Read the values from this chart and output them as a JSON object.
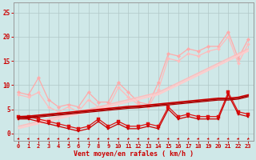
{
  "bg_color": "#cfe8e8",
  "grid_color": "#b0c8c8",
  "xlabel": "Vent moyen/en rafales ( km/h )",
  "xlabel_color": "#cc0000",
  "tick_color": "#cc0000",
  "x_ticks": [
    0,
    1,
    2,
    3,
    4,
    5,
    6,
    7,
    8,
    9,
    10,
    11,
    12,
    13,
    14,
    15,
    16,
    17,
    18,
    19,
    20,
    21,
    22,
    23
  ],
  "y_ticks": [
    0,
    5,
    10,
    15,
    20,
    25
  ],
  "ylim": [
    -1.5,
    27
  ],
  "xlim": [
    -0.5,
    23.5
  ],
  "lines": [
    {
      "color": "#ffaaaa",
      "lw": 0.9,
      "marker": "D",
      "ms": 2.2,
      "y": [
        8.5,
        8.0,
        11.5,
        7.0,
        5.5,
        6.0,
        5.5,
        8.5,
        6.5,
        6.5,
        10.5,
        8.5,
        6.5,
        6.0,
        10.5,
        16.5,
        16.0,
        17.5,
        17.0,
        18.0,
        18.0,
        21.0,
        15.5,
        19.5
      ]
    },
    {
      "color": "#ffbbbb",
      "lw": 0.9,
      "marker": "D",
      "ms": 2.0,
      "y": [
        8.0,
        7.5,
        8.5,
        5.5,
        4.5,
        5.5,
        4.5,
        7.0,
        5.5,
        5.5,
        9.5,
        7.5,
        6.0,
        5.5,
        9.0,
        15.5,
        15.0,
        16.5,
        16.0,
        17.0,
        17.5,
        20.0,
        14.5,
        18.5
      ]
    },
    {
      "color": "#ffbbbb",
      "lw": 1.0,
      "marker": null,
      "ms": 0,
      "y": [
        1.5,
        2.0,
        2.5,
        3.0,
        3.5,
        4.0,
        4.5,
        5.0,
        5.5,
        6.0,
        6.5,
        7.0,
        7.5,
        8.0,
        8.5,
        9.5,
        10.5,
        11.5,
        12.5,
        13.5,
        14.5,
        15.5,
        16.5,
        17.5
      ]
    },
    {
      "color": "#ffcccc",
      "lw": 1.0,
      "marker": null,
      "ms": 0,
      "y": [
        1.2,
        1.7,
        2.2,
        2.7,
        3.2,
        3.7,
        4.2,
        4.7,
        5.2,
        5.7,
        6.2,
        6.7,
        7.2,
        7.7,
        8.2,
        9.2,
        10.2,
        11.2,
        12.2,
        13.2,
        14.2,
        15.2,
        16.2,
        17.2
      ]
    },
    {
      "color": "#ffcccc",
      "lw": 0.9,
      "marker": null,
      "ms": 0,
      "y": [
        1.0,
        1.5,
        2.0,
        2.5,
        3.0,
        3.5,
        4.0,
        4.5,
        5.0,
        5.5,
        6.0,
        6.5,
        7.0,
        7.5,
        8.0,
        9.0,
        10.0,
        11.0,
        12.0,
        13.0,
        14.0,
        15.0,
        16.0,
        17.0
      ]
    },
    {
      "color": "#dd1111",
      "lw": 0.9,
      "marker": "s",
      "ms": 2.2,
      "y": [
        3.5,
        3.5,
        3.0,
        2.5,
        2.0,
        1.5,
        1.0,
        1.5,
        3.0,
        1.5,
        2.5,
        1.5,
        1.5,
        2.0,
        1.5,
        5.5,
        3.5,
        4.0,
        3.5,
        3.5,
        3.5,
        8.5,
        4.5,
        4.0
      ]
    },
    {
      "color": "#cc0000",
      "lw": 0.9,
      "marker": "s",
      "ms": 2.0,
      "y": [
        3.0,
        3.0,
        2.5,
        2.0,
        1.5,
        1.0,
        0.5,
        1.0,
        2.5,
        1.0,
        2.0,
        1.0,
        1.0,
        1.5,
        1.0,
        5.0,
        3.0,
        3.5,
        3.0,
        3.0,
        3.0,
        8.0,
        4.0,
        3.5
      ]
    },
    {
      "color": "#cc0000",
      "lw": 1.1,
      "marker": null,
      "ms": 0,
      "y": [
        3.5,
        3.6,
        3.8,
        4.0,
        4.2,
        4.4,
        4.6,
        4.8,
        5.0,
        5.2,
        5.4,
        5.6,
        5.7,
        5.9,
        6.1,
        6.3,
        6.5,
        6.7,
        6.9,
        7.1,
        7.3,
        7.3,
        7.5,
        8.0
      ]
    },
    {
      "color": "#aa0000",
      "lw": 1.0,
      "marker": null,
      "ms": 0,
      "y": [
        3.3,
        3.4,
        3.6,
        3.8,
        4.0,
        4.2,
        4.4,
        4.6,
        4.8,
        5.0,
        5.2,
        5.4,
        5.5,
        5.7,
        5.9,
        6.1,
        6.3,
        6.5,
        6.7,
        6.9,
        7.1,
        7.1,
        7.3,
        7.8
      ]
    },
    {
      "color": "#aa0000",
      "lw": 0.9,
      "marker": null,
      "ms": 0,
      "y": [
        3.1,
        3.2,
        3.4,
        3.6,
        3.8,
        4.0,
        4.2,
        4.4,
        4.6,
        4.8,
        5.0,
        5.2,
        5.3,
        5.5,
        5.7,
        5.9,
        6.1,
        6.3,
        6.5,
        6.7,
        6.9,
        6.9,
        7.1,
        7.6
      ]
    }
  ],
  "arrow_angles": [
    200,
    190,
    195,
    210,
    200,
    215,
    195,
    205,
    210,
    200,
    195,
    215,
    200,
    205,
    210,
    195,
    200,
    215,
    205,
    195,
    210,
    200,
    205,
    215
  ],
  "arrow_color": "#cc0000"
}
